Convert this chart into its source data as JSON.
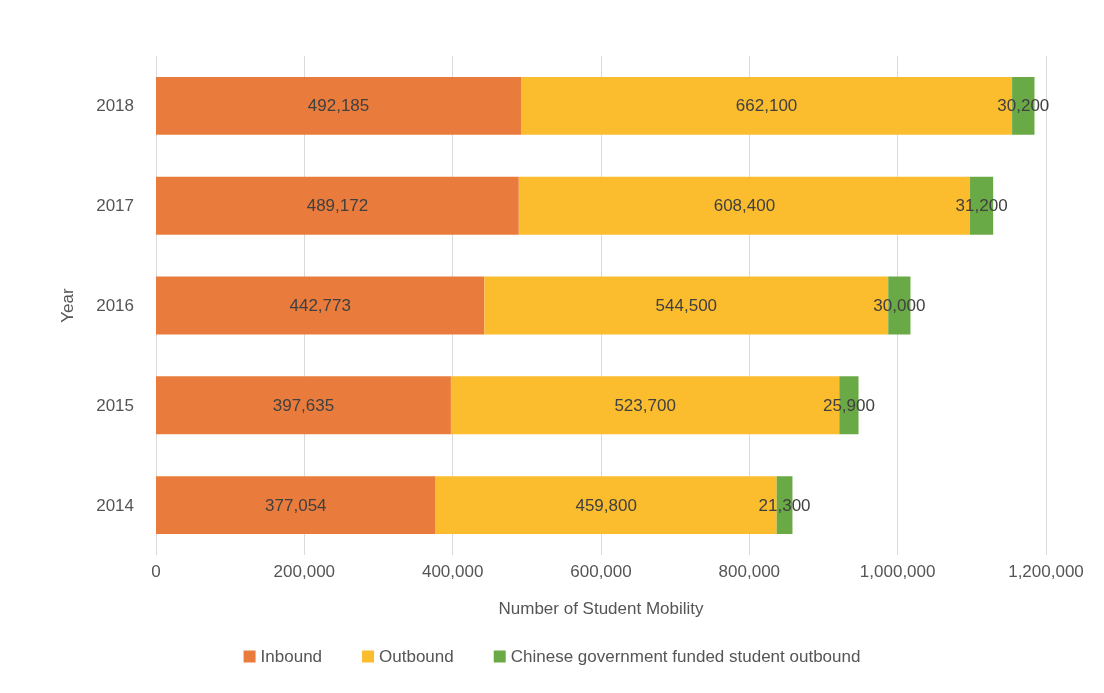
{
  "chart_data": {
    "type": "bar",
    "orientation": "horizontal",
    "stacked": true,
    "xlabel": "Number of Student Mobility",
    "ylabel": "Year",
    "categories": [
      "2018",
      "2017",
      "2016",
      "2015",
      "2014"
    ],
    "series": [
      {
        "name": "Inbound",
        "color": "#e97c3c",
        "values": [
          492185,
          489172,
          442773,
          397635,
          377054
        ],
        "value_labels": [
          "492,185",
          "489,172",
          "442,773",
          "397,635",
          "377,054"
        ]
      },
      {
        "name": "Outbound",
        "color": "#fbbd2e",
        "values": [
          662100,
          608400,
          544500,
          523700,
          459800
        ],
        "value_labels": [
          "662,100",
          "608,400",
          "544,500",
          "523,700",
          "459,800"
        ]
      },
      {
        "name": "Chinese government funded student outbound",
        "color": "#6aaa46",
        "values": [
          30200,
          31200,
          30000,
          25900,
          21300
        ],
        "value_labels": [
          "30,200",
          "31,200",
          "30,000",
          "25,900",
          "21,300"
        ]
      }
    ],
    "xlim": [
      0,
      1200000
    ],
    "xticks": [
      0,
      {
        "value": 200000,
        "label": "200,000"
      },
      {
        "value": 400000,
        "label": "400,000"
      },
      {
        "value": 600000,
        "label": "600,000"
      },
      {
        "value": 800000,
        "label": "800,000"
      },
      {
        "value": 1000000,
        "label": "1,000,000"
      },
      {
        "value": 1200000,
        "label": "1,200,000"
      }
    ],
    "grid": "x",
    "legend": "bottom"
  }
}
